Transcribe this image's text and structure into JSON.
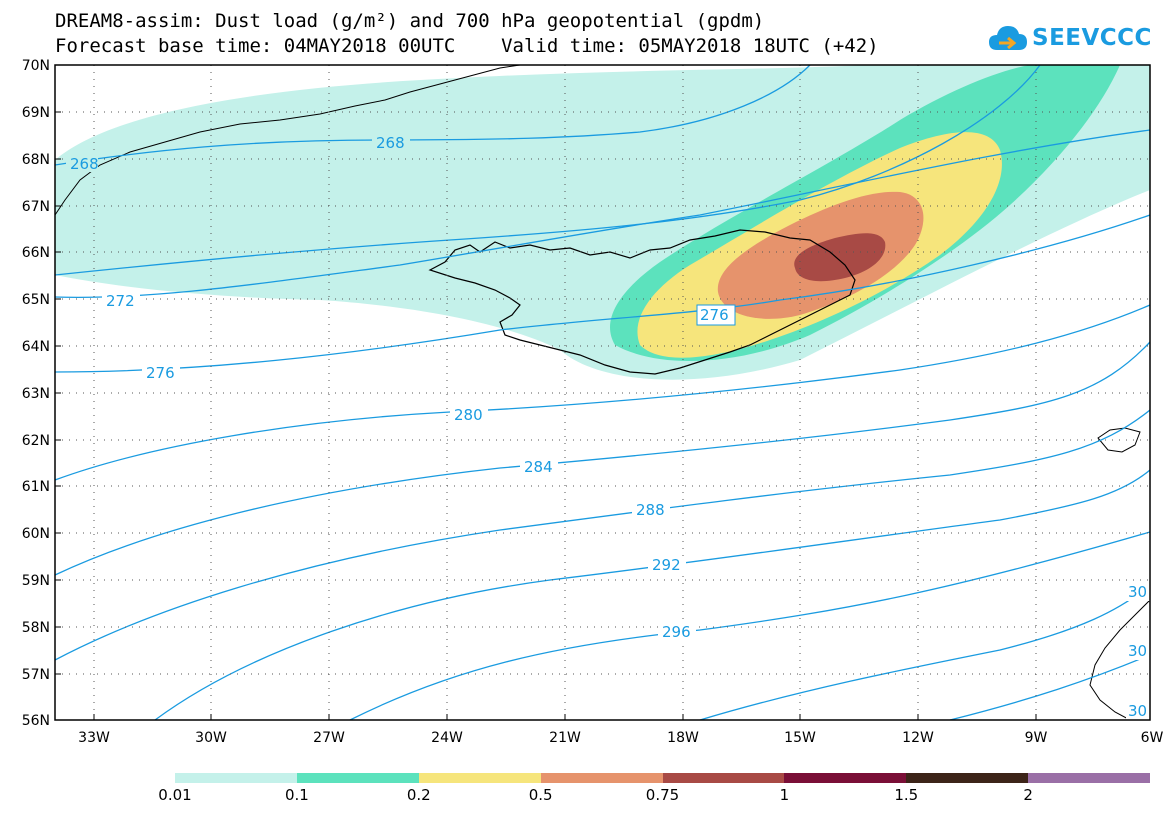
{
  "title": {
    "line1": "DREAM8-assim: Dust load (g/m²) and 700 hPa geopotential (gpdm)",
    "line2": "Forecast base time: 04MAY2018 00UTC    Valid time: 05MAY2018 18UTC (+42)"
  },
  "logo": {
    "text": "SEEVCCC",
    "icon": "cloud-icon",
    "color": "#1a9be0"
  },
  "map": {
    "lat_range": [
      56,
      70
    ],
    "lon_range": [
      -34.5,
      -6
    ],
    "lat_ticks": [
      "70N",
      "69N",
      "68N",
      "67N",
      "66N",
      "65N",
      "64N",
      "63N",
      "62N",
      "61N",
      "60N",
      "59N",
      "58N",
      "57N",
      "56N"
    ],
    "lon_ticks": [
      "33W",
      "30W",
      "27W",
      "24W",
      "21W",
      "18W",
      "15W",
      "12W",
      "9W",
      "6W"
    ],
    "gridlines": "dotted",
    "contour_color": "#1a9be0",
    "contour_labels": [
      "268",
      "268",
      "272",
      "276",
      "276",
      "280",
      "284",
      "288",
      "292",
      "296",
      "30",
      "30",
      "30"
    ]
  },
  "legend": {
    "labels": [
      "0.01",
      "0.1",
      "0.2",
      "0.5",
      "0.75",
      "1",
      "1.5",
      "2"
    ],
    "colors": [
      "#c4f1ea",
      "#5ce2bd",
      "#f6e57c",
      "#e6936c",
      "#a84a45",
      "#7a0f37",
      "#3c2418",
      "#9a6fa6"
    ]
  }
}
